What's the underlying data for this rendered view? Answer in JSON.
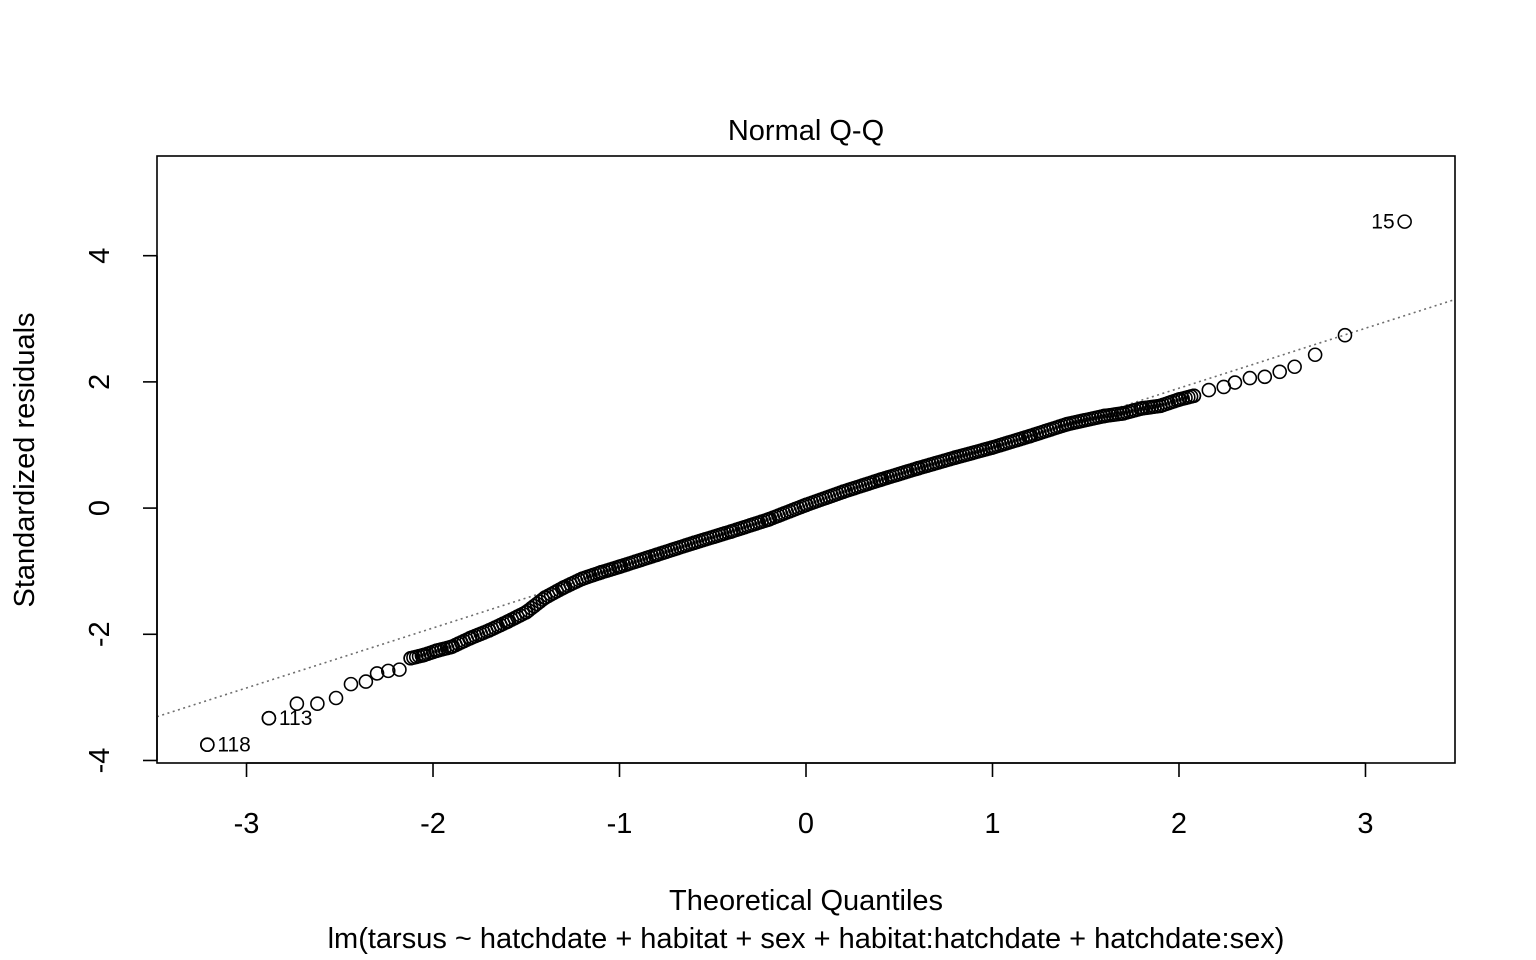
{
  "chart_data": {
    "type": "scatter",
    "title": "Normal Q-Q",
    "xlabel": "Theoretical Quantiles",
    "ylabel": "Standardized residuals",
    "subtitle": "lm(tarsus ~ hatchdate + habitat + sex + habitat:hatchdate + hatchdate:sex)",
    "xlim": [
      -3.48,
      3.48
    ],
    "ylim": [
      -4.04,
      5.58
    ],
    "x_ticks": [
      -3,
      -2,
      -1,
      0,
      1,
      2,
      3
    ],
    "y_ticks": [
      -4,
      -2,
      0,
      2,
      4
    ],
    "x_tick_labels": [
      "-3",
      "-2",
      "-1",
      "0",
      "1",
      "2",
      "3"
    ],
    "y_tick_labels": [
      "-4",
      "-2",
      "0",
      "2",
      "4"
    ],
    "grid": false,
    "reference_line": {
      "style": "dotted",
      "color": "#6e6e6e",
      "slope": 0.95,
      "intercept": 0.0
    },
    "anchor_points": [
      [
        -3.21,
        -3.75
      ],
      [
        -2.88,
        -3.33
      ],
      [
        -2.73,
        -3.1
      ],
      [
        -2.62,
        -3.1
      ],
      [
        -2.52,
        -3.01
      ],
      [
        -2.44,
        -2.79
      ],
      [
        -2.36,
        -2.75
      ],
      [
        -2.3,
        -2.62
      ],
      [
        -2.24,
        -2.58
      ],
      [
        -2.18,
        -2.56
      ],
      [
        -2.12,
        -2.38
      ],
      [
        -2.05,
        -2.33
      ],
      [
        -1.98,
        -2.26
      ],
      [
        -1.9,
        -2.2
      ],
      [
        -1.8,
        -2.06
      ],
      [
        -1.7,
        -1.94
      ],
      [
        -1.6,
        -1.8
      ],
      [
        -1.5,
        -1.65
      ],
      [
        -1.4,
        -1.42
      ],
      [
        -1.3,
        -1.26
      ],
      [
        -1.2,
        -1.12
      ],
      [
        -1.1,
        -1.02
      ],
      [
        -1.0,
        -0.93
      ],
      [
        -0.8,
        -0.74
      ],
      [
        -0.6,
        -0.55
      ],
      [
        -0.4,
        -0.37
      ],
      [
        -0.2,
        -0.18
      ],
      [
        0.0,
        0.05
      ],
      [
        0.2,
        0.26
      ],
      [
        0.4,
        0.45
      ],
      [
        0.6,
        0.63
      ],
      [
        0.8,
        0.8
      ],
      [
        1.0,
        0.96
      ],
      [
        1.2,
        1.14
      ],
      [
        1.4,
        1.33
      ],
      [
        1.6,
        1.46
      ],
      [
        1.7,
        1.5
      ],
      [
        1.8,
        1.58
      ],
      [
        1.9,
        1.62
      ],
      [
        2.0,
        1.72
      ],
      [
        2.08,
        1.78
      ],
      [
        2.16,
        1.87
      ],
      [
        2.24,
        1.92
      ],
      [
        2.3,
        1.99
      ],
      [
        2.38,
        2.06
      ],
      [
        2.46,
        2.08
      ],
      [
        2.54,
        2.16
      ],
      [
        2.62,
        2.24
      ],
      [
        2.73,
        2.43
      ],
      [
        2.89,
        2.74
      ]
    ],
    "n_points": 280,
    "outliers": [
      {
        "label": "15",
        "x": 3.21,
        "y": 4.54,
        "label_side": "left"
      },
      {
        "label": "113",
        "x": -2.88,
        "y": -3.33,
        "label_side": "right"
      },
      {
        "label": "118",
        "x": -3.21,
        "y": -3.75,
        "label_side": "right"
      }
    ],
    "marker": "open-circle",
    "marker_color": "#000000"
  }
}
